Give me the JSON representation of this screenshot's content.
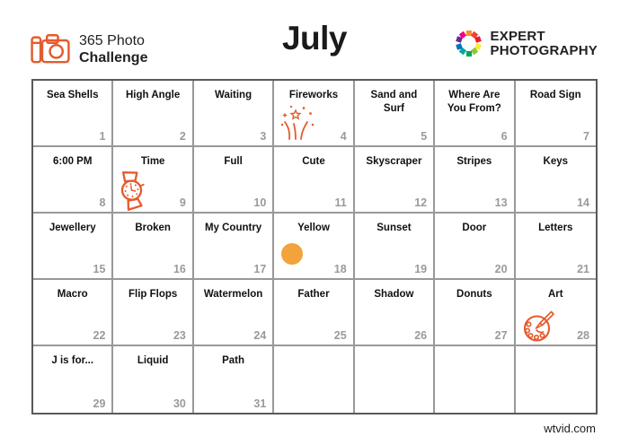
{
  "header": {
    "brand": {
      "line1": "365 Photo",
      "line2": "Challenge"
    },
    "title": "July",
    "logo": {
      "line1": "EXPERT",
      "line2": "PHOTOGRAPHY",
      "ring_colors": [
        "#F7941D",
        "#EF4136",
        "#ED1C24",
        "#F9ED32",
        "#8DC63F",
        "#00A651",
        "#00A99D",
        "#0072BC",
        "#662D91",
        "#EC008C"
      ]
    }
  },
  "colors": {
    "accent_orange": "#E55B2D",
    "yellow_dot": "#F2A33C",
    "number_gray": "#9A9A9C",
    "grid_inner_line": "#97989A",
    "grid_outer_line": "#58595B"
  },
  "calendar": {
    "columns": 7,
    "rows": 5,
    "cells": [
      {
        "label": "Sea Shells",
        "day": "1"
      },
      {
        "label": "High Angle",
        "day": "2"
      },
      {
        "label": "Waiting",
        "day": "3"
      },
      {
        "label": "Fireworks",
        "day": "4",
        "icon": "fireworks-icon"
      },
      {
        "label": "Sand and Surf",
        "day": "5"
      },
      {
        "label": "Where Are You From?",
        "day": "6"
      },
      {
        "label": "Road Sign",
        "day": "7"
      },
      {
        "label": "6:00 PM",
        "day": "8"
      },
      {
        "label": "Time",
        "day": "9",
        "icon": "wristwatch-icon"
      },
      {
        "label": "Full",
        "day": "10"
      },
      {
        "label": "Cute",
        "day": "11"
      },
      {
        "label": "Skyscraper",
        "day": "12"
      },
      {
        "label": "Stripes",
        "day": "13"
      },
      {
        "label": "Keys",
        "day": "14"
      },
      {
        "label": "Jewellery",
        "day": "15"
      },
      {
        "label": "Broken",
        "day": "16"
      },
      {
        "label": "My Country",
        "day": "17"
      },
      {
        "label": "Yellow",
        "day": "18",
        "icon": "yellow-circle-icon"
      },
      {
        "label": "Sunset",
        "day": "19"
      },
      {
        "label": "Door",
        "day": "20"
      },
      {
        "label": "Letters",
        "day": "21"
      },
      {
        "label": "Macro",
        "day": "22"
      },
      {
        "label": "Flip Flops",
        "day": "23"
      },
      {
        "label": "Watermelon",
        "day": "24"
      },
      {
        "label": "Father",
        "day": "25"
      },
      {
        "label": "Shadow",
        "day": "26"
      },
      {
        "label": "Donuts",
        "day": "27"
      },
      {
        "label": "Art",
        "day": "28",
        "icon": "palette-icon"
      },
      {
        "label": "J is for...",
        "day": "29"
      },
      {
        "label": "Liquid",
        "day": "30"
      },
      {
        "label": "Path",
        "day": "31"
      },
      {
        "label": "",
        "day": ""
      },
      {
        "label": "",
        "day": ""
      },
      {
        "label": "",
        "day": ""
      },
      {
        "label": "",
        "day": ""
      }
    ]
  },
  "watermark": "wtvid.com"
}
